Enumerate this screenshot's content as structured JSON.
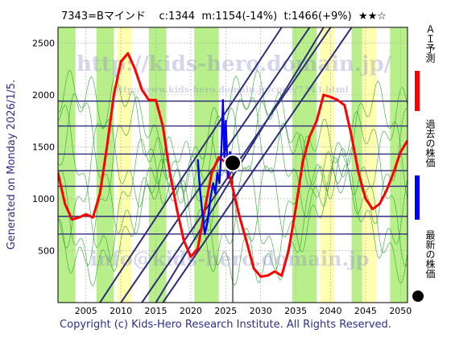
{
  "header": {
    "code_name": "7343=Bマインド",
    "current": "c:1344",
    "mid": "m:1154(-14%)",
    "target": "t:1466(+9%)",
    "stars": "★★☆"
  },
  "generated_text": "Generated on Monday 2026/1/5.",
  "watermarks": [
    "http://kids-hero.domain.jp/",
    "http://www.kids-hero.domain.jp/code/7343.html",
    "info@kids-hero.domain.jp"
  ],
  "legend": {
    "ai": "ＡＩ予測",
    "past": "過去の株価",
    "latest": "最新の株価"
  },
  "footer": "Copyright (c) Kids-Hero Research Institute. All Rights Reserved.",
  "colors": {
    "ai_line": "#ff0000",
    "past_line": "#0000ff",
    "latest_dot": "#000000",
    "band_green": "#b8ef8a",
    "band_yellow": "#ffffb0",
    "hline": "#2e2e7a"
  },
  "chart_data": {
    "type": "line",
    "xlim": [
      2001,
      2051
    ],
    "ylim": [
      0,
      2650
    ],
    "x_ticks": [
      2005,
      2010,
      2015,
      2020,
      2025,
      2030,
      2035,
      2040,
      2045,
      2050
    ],
    "y_ticks": [
      500,
      1000,
      1500,
      2000,
      2500
    ],
    "hlines": [
      660,
      830,
      1120,
      1270,
      1430,
      1700,
      1940
    ],
    "latest": {
      "x": 2026.0,
      "y": 1344
    },
    "series": [
      {
        "name": "ＡＩ予測",
        "points": [
          [
            2001,
            1250
          ],
          [
            2002,
            950
          ],
          [
            2003,
            800
          ],
          [
            2004,
            820
          ],
          [
            2005,
            850
          ],
          [
            2006,
            820
          ],
          [
            2007,
            1050
          ],
          [
            2008,
            1500
          ],
          [
            2009,
            2000
          ],
          [
            2010,
            2320
          ],
          [
            2011,
            2400
          ],
          [
            2012,
            2250
          ],
          [
            2013,
            2050
          ],
          [
            2014,
            1950
          ],
          [
            2015,
            1950
          ],
          [
            2016,
            1700
          ],
          [
            2017,
            1250
          ],
          [
            2018,
            900
          ],
          [
            2019,
            600
          ],
          [
            2020,
            440
          ],
          [
            2021,
            520
          ],
          [
            2022,
            900
          ],
          [
            2023,
            1250
          ],
          [
            2024,
            1400
          ],
          [
            2025,
            1350
          ],
          [
            2026,
            1100
          ],
          [
            2027,
            820
          ],
          [
            2028,
            580
          ],
          [
            2029,
            330
          ],
          [
            2030,
            250
          ],
          [
            2031,
            260
          ],
          [
            2032,
            300
          ],
          [
            2033,
            260
          ],
          [
            2034,
            500
          ],
          [
            2035,
            900
          ],
          [
            2036,
            1350
          ],
          [
            2037,
            1600
          ],
          [
            2038,
            1750
          ],
          [
            2039,
            2000
          ],
          [
            2040,
            1980
          ],
          [
            2041,
            1950
          ],
          [
            2042,
            1900
          ],
          [
            2043,
            1600
          ],
          [
            2044,
            1250
          ],
          [
            2045,
            1000
          ],
          [
            2046,
            900
          ],
          [
            2047,
            950
          ],
          [
            2048,
            1080
          ],
          [
            2049,
            1250
          ],
          [
            2050,
            1450
          ],
          [
            2051,
            1560
          ]
        ]
      },
      {
        "name": "過去の株価",
        "points": [
          [
            2021.0,
            1380
          ],
          [
            2021.3,
            1100
          ],
          [
            2021.6,
            900
          ],
          [
            2022.0,
            660
          ],
          [
            2022.4,
            780
          ],
          [
            2022.8,
            1000
          ],
          [
            2023.2,
            1150
          ],
          [
            2023.5,
            1050
          ],
          [
            2023.8,
            1250
          ],
          [
            2024.1,
            1150
          ],
          [
            2024.4,
            1500
          ],
          [
            2024.6,
            1950
          ],
          [
            2024.8,
            1400
          ],
          [
            2025.0,
            1750
          ],
          [
            2025.3,
            1200
          ],
          [
            2025.6,
            1450
          ],
          [
            2026.0,
            1344
          ]
        ]
      }
    ],
    "trendlines": [
      [
        [
          2010,
          0
        ],
        [
          2037,
          2650
        ]
      ],
      [
        [
          2013,
          0
        ],
        [
          2040,
          2650
        ]
      ],
      [
        [
          2016,
          0
        ],
        [
          2043,
          2650
        ]
      ],
      [
        [
          2015,
          0
        ],
        [
          2039,
          2650
        ]
      ],
      [
        [
          2007,
          0
        ],
        [
          2033,
          2650
        ]
      ]
    ],
    "bands_green": [
      [
        2001,
        2003.5
      ],
      [
        2006.5,
        2009
      ],
      [
        2014,
        2016.5
      ],
      [
        2020.5,
        2024
      ],
      [
        2034.5,
        2038
      ],
      [
        2043,
        2046
      ],
      [
        2048.5,
        2051
      ]
    ],
    "bands_yellow": [
      [
        2009.5,
        2011.5
      ],
      [
        2038.5,
        2040.5
      ],
      [
        2044.5,
        2046.5
      ]
    ],
    "grid": true
  }
}
